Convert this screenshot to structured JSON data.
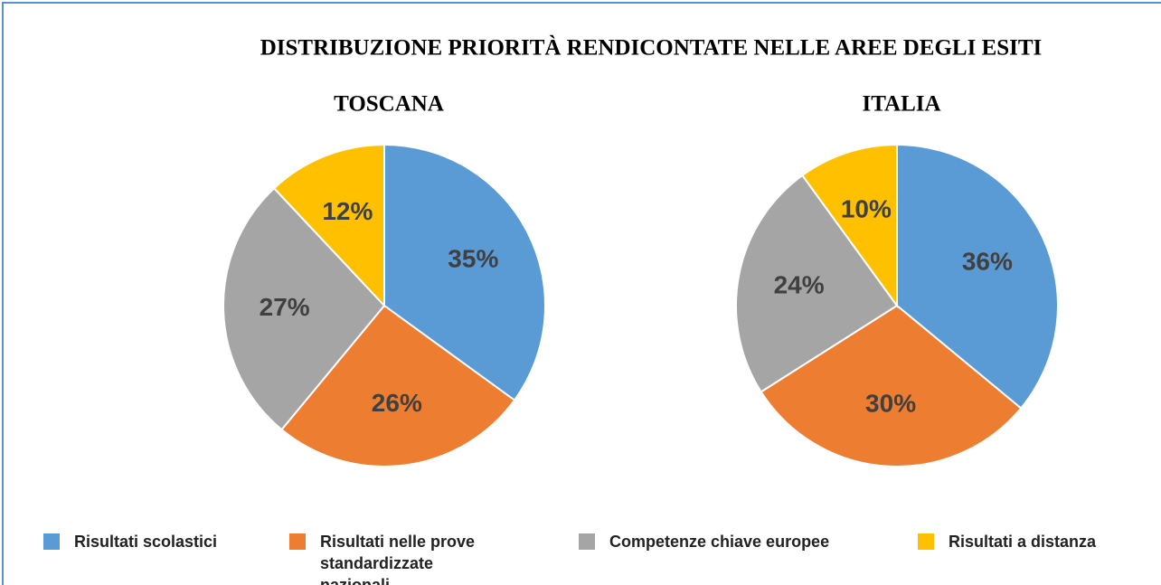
{
  "title": "DISTRIBUZIONE PRIORITÀ RENDICONTATE NELLE AREE DEGLI ESITI",
  "legend": {
    "categories": [
      "Risultati scolastici",
      "Risultati nelle prove standardizzate nazionali",
      "Competenze chiave europee",
      "Risultati a distanza"
    ],
    "colors": [
      "#5b9bd5",
      "#ed7d31",
      "#a5a5a5",
      "#ffc000"
    ]
  },
  "chart_data": [
    {
      "type": "pie",
      "title": "TOSCANA",
      "values": [
        35,
        26,
        27,
        12
      ],
      "value_labels": [
        "35%",
        "26%",
        "27%",
        "12%"
      ]
    },
    {
      "type": "pie",
      "title": "ITALIA",
      "values": [
        36,
        30,
        24,
        10
      ],
      "value_labels": [
        "36%",
        "30%",
        "24%",
        "10%"
      ]
    }
  ]
}
